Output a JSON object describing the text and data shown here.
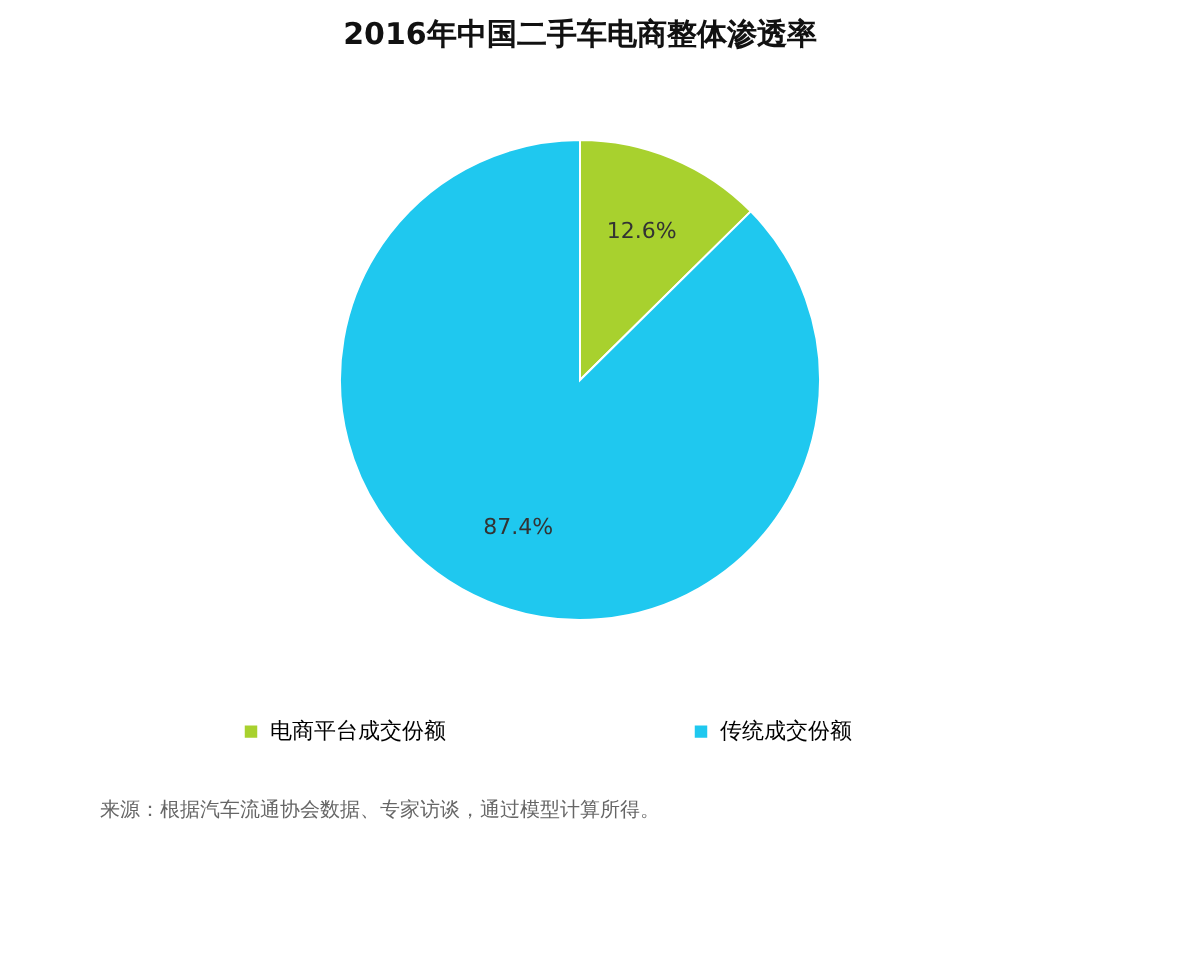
{
  "chart_data": {
    "type": "pie",
    "title": "2016年中国二手车电商整体渗透率",
    "categories": [
      "电商平台成交份额",
      "传统成交份额"
    ],
    "values": [
      12.6,
      87.4
    ],
    "colors": [
      "#a8d12e",
      "#1fc8ef"
    ],
    "value_labels": [
      "12.6%",
      "87.4%"
    ],
    "legend": "bottom",
    "annotations": [
      "来源：根据汽车流通协会数据、专家访谈，通过模型计算所得。"
    ]
  }
}
